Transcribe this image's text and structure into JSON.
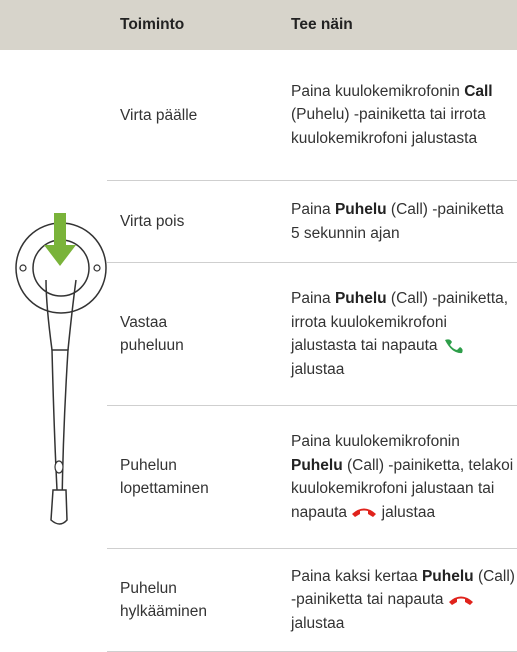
{
  "table": {
    "headers": [
      "Toiminto",
      "Tee näin"
    ],
    "rows": [
      {
        "action": "Virta päälle",
        "instruction": [
          "Paina kuulokemikrofonin ",
          "Call",
          " (Puhelu) -painiketta tai irrota kuulokemikrofoni jalustasta"
        ]
      },
      {
        "action": "Virta pois",
        "instruction": [
          "Paina ",
          "Puhelu",
          " (Call) -painiketta 5 sekunnin ajan"
        ]
      },
      {
        "action": "Vastaa puheluun",
        "instruction": [
          "Paina ",
          "Puhelu",
          " (Call) -painiketta, irrota kuulokemikrofoni jalustasta tai napauta ",
          " jalustaa"
        ]
      },
      {
        "action": "Puhelun lopettaminen",
        "instruction": [
          "Paina kuulokemikrofonin ",
          "Puhelu",
          " (Call) -painiketta, telakoi kuulokemikrofoni jalustaan tai napauta ",
          " jalustaa"
        ]
      },
      {
        "action": "Puhelun hylkääminen",
        "instruction": [
          "Paina kaksi kertaa ",
          "Puhelu",
          " (Call) -painiketta tai napauta ",
          " jalustaa"
        ]
      }
    ]
  }
}
